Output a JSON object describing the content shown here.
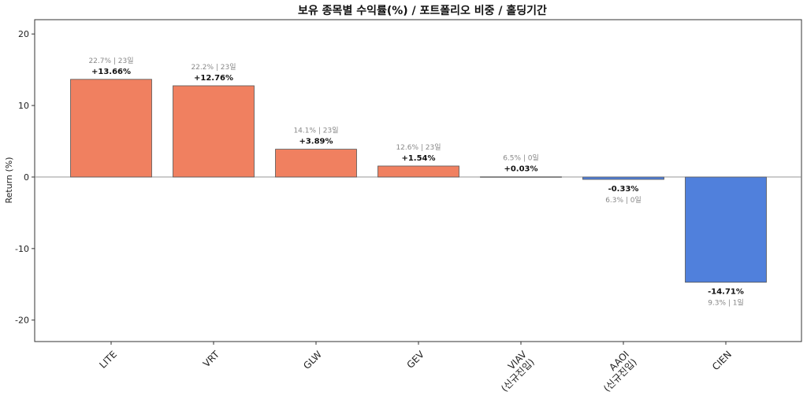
{
  "chart_data": {
    "type": "bar",
    "title": "보유 종목별 수익률(%) / 포트폴리오 비중 / 홀딩기간",
    "xlabel": "",
    "ylabel": "Return (%)",
    "ylim": [
      -23,
      22
    ],
    "yticks": [
      -20,
      -10,
      0,
      10,
      20
    ],
    "categories": [
      "LITE",
      "VRT",
      "GLW",
      "GEV",
      "VIAV\n(신규진입)",
      "AAOI\n(신규진입)",
      "CIEN"
    ],
    "values": [
      13.66,
      12.76,
      3.89,
      1.54,
      0.03,
      -0.33,
      -14.71
    ],
    "value_labels": [
      "+13.66%",
      "+12.76%",
      "+3.89%",
      "+1.54%",
      "+0.03%",
      "-0.33%",
      "-14.71%"
    ],
    "weight_hold_labels": [
      "22.7% | 23일",
      "22.2% | 23일",
      "14.1% | 23일",
      "12.6% | 23일",
      "6.5% | 0일",
      "6.3% | 0일",
      "9.3% | 1일"
    ],
    "colors": {
      "positive": "#f08060",
      "negative": "#5080dc",
      "edge": "#555555",
      "zero_line": "#888888"
    },
    "grid": false,
    "legend": "none"
  }
}
